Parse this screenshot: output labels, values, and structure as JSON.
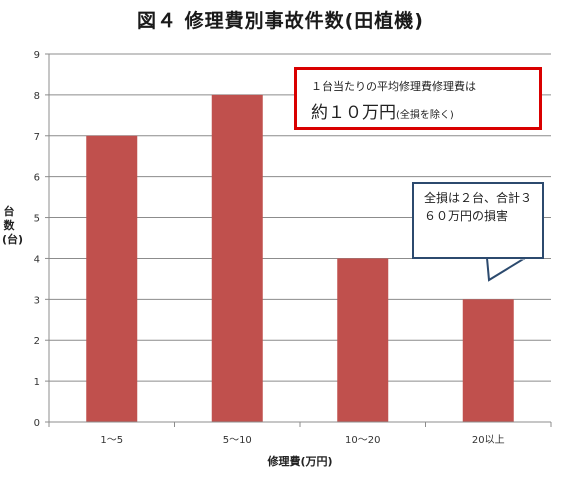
{
  "chart_data": {
    "type": "bar",
    "title": "図４ 修理費別事故件数(田植機)",
    "xlabel": "修理費(万円)",
    "ylabel": "台数(台)",
    "categories": [
      "1～5",
      "5～10",
      "10～20",
      "20以上"
    ],
    "values": [
      7,
      8,
      4,
      3
    ],
    "ylim": [
      0,
      9
    ],
    "yticks": [
      0,
      1,
      2,
      3,
      4,
      5,
      6,
      7,
      8,
      9
    ],
    "grid": true,
    "bar_color": "#c0504d",
    "annotations": [
      {
        "line1": "１台当たりの平均修理費修理費は",
        "line2": "約１０万円",
        "line2_note": "(全損を除く)"
      },
      {
        "text": "全損は２台、合計３６０万円の損害"
      }
    ]
  }
}
